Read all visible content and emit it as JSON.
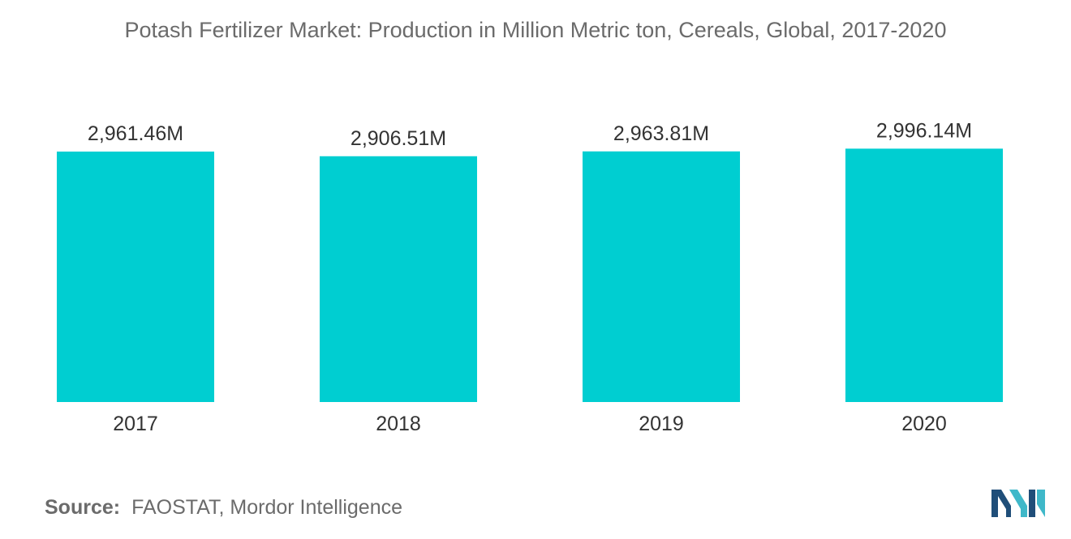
{
  "title": "Potash Fertilizer Market: Production in Million Metric ton, Cereals, Global, 2017-2020",
  "source": {
    "label": "Source:",
    "text": "FAOSTAT, Mordor Intelligence"
  },
  "colors": {
    "bar": "#00CED1",
    "title": "#6b6b6b",
    "text": "#333333",
    "logo_dark": "#1f4e79",
    "logo_light": "#3fb8c9"
  },
  "logo": {
    "icon": "mordor-intelligence-logo-icon"
  },
  "chart_data": {
    "type": "bar",
    "categories": [
      "2017",
      "2018",
      "2019",
      "2020"
    ],
    "values": [
      2961.46,
      2906.51,
      2963.81,
      2996.14
    ],
    "value_labels": [
      "2,961.46M",
      "2,906.51M",
      "2,963.81M",
      "2,996.14M"
    ],
    "ylim": [
      0,
      3000
    ],
    "grid": false,
    "legend": "none"
  }
}
